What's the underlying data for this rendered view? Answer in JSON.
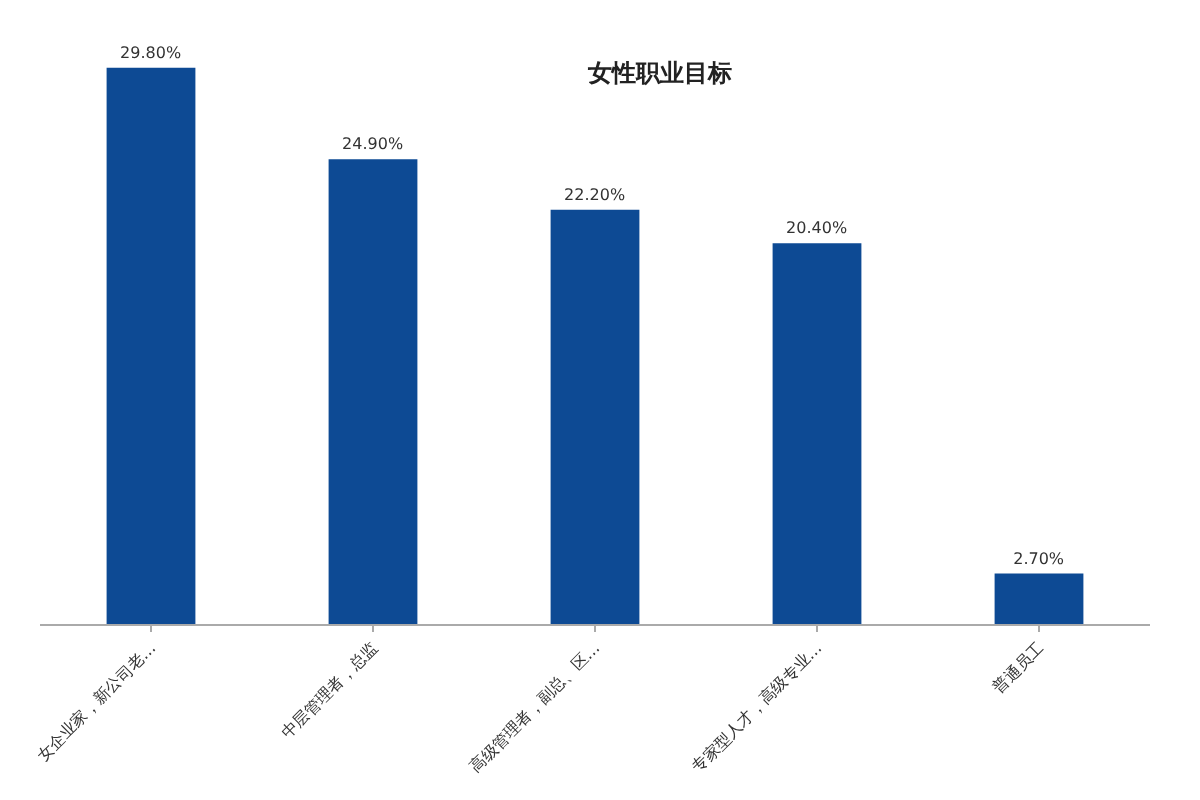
{
  "chart_data": {
    "type": "bar",
    "title": "女性职业目标",
    "categories": [
      "女企业家，新公司老…",
      "中层管理者，总监",
      "高级管理者，副总、区…",
      "专家型人才，高级专业…",
      "普通员工"
    ],
    "values": [
      29.8,
      24.9,
      22.2,
      20.4,
      2.7
    ],
    "value_labels": [
      "29.80%",
      "24.90%",
      "22.20%",
      "20.40%",
      "2.70%"
    ],
    "color": "#0d4a94"
  }
}
